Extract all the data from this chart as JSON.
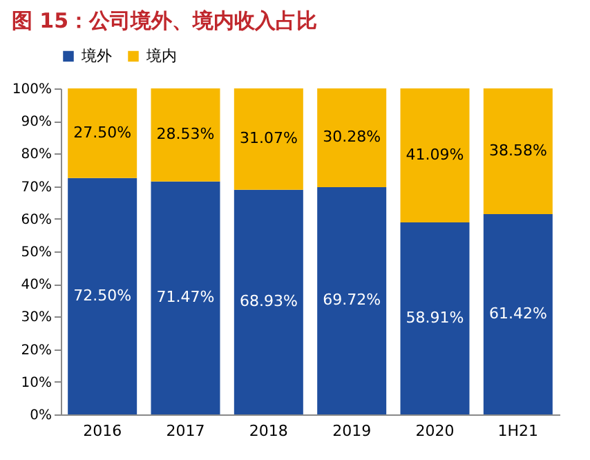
{
  "chart_data": {
    "type": "bar",
    "title": "图 15：公司境外、境内收入占比",
    "stacked": true,
    "legend": "top",
    "categories": [
      "2016",
      "2017",
      "2018",
      "2019",
      "2020",
      "1H21"
    ],
    "ylim": [
      0,
      100
    ],
    "yticks": [
      {
        "value": 0,
        "label": "0%"
      },
      {
        "value": 10,
        "label": "10%"
      },
      {
        "value": 20,
        "label": "20%"
      },
      {
        "value": 30,
        "label": "30%"
      },
      {
        "value": 40,
        "label": "40%"
      },
      {
        "value": 50,
        "label": "50%"
      },
      {
        "value": 60,
        "label": "60%"
      },
      {
        "value": 70,
        "label": "70%"
      },
      {
        "value": 80,
        "label": "80%"
      },
      {
        "value": 90,
        "label": "90%"
      },
      {
        "value": 100,
        "label": "100%"
      }
    ],
    "series": [
      {
        "name": "境外",
        "color": "#1f4e9e",
        "values": [
          72.5,
          71.47,
          68.93,
          69.72,
          58.91,
          61.42
        ],
        "value_labels": [
          "72.50%",
          "71.47%",
          "68.93%",
          "69.72%",
          "58.91%",
          "61.42%"
        ]
      },
      {
        "name": "境内",
        "color": "#f7b800",
        "values": [
          27.5,
          28.53,
          31.07,
          30.28,
          41.09,
          38.58
        ],
        "value_labels": [
          "27.50%",
          "28.53%",
          "31.07%",
          "30.28%",
          "41.09%",
          "38.58%"
        ]
      }
    ]
  }
}
